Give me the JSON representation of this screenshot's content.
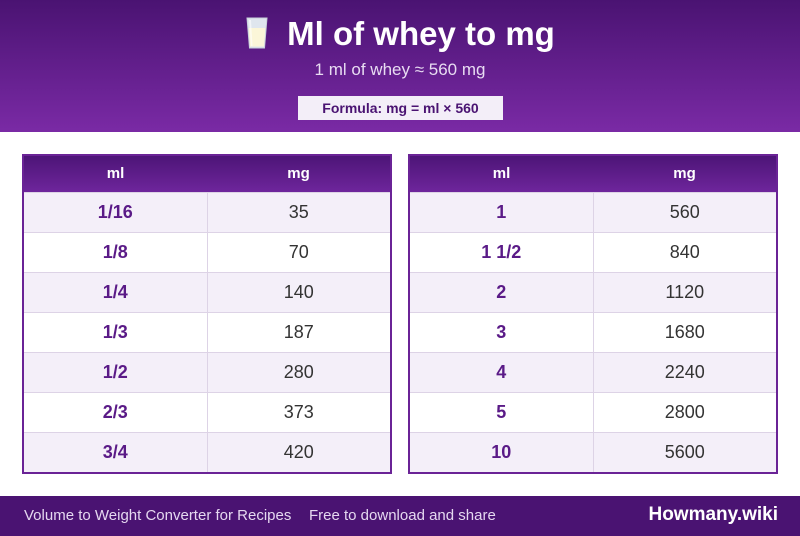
{
  "header": {
    "title": "Ml of whey to mg",
    "subtitle": "1 ml of whey ≈ 560 mg",
    "formula": "Formula: mg = ml × 560"
  },
  "tables": [
    {
      "col_ml": "ml",
      "col_mg": "mg",
      "rows": [
        {
          "ml": "1/16",
          "mg": "35"
        },
        {
          "ml": "1/8",
          "mg": "70"
        },
        {
          "ml": "1/4",
          "mg": "140"
        },
        {
          "ml": "1/3",
          "mg": "187"
        },
        {
          "ml": "1/2",
          "mg": "280"
        },
        {
          "ml": "2/3",
          "mg": "373"
        },
        {
          "ml": "3/4",
          "mg": "420"
        }
      ]
    },
    {
      "col_ml": "ml",
      "col_mg": "mg",
      "rows": [
        {
          "ml": "1",
          "mg": "560"
        },
        {
          "ml": "1 1/2",
          "mg": "840"
        },
        {
          "ml": "2",
          "mg": "1120"
        },
        {
          "ml": "3",
          "mg": "1680"
        },
        {
          "ml": "4",
          "mg": "2240"
        },
        {
          "ml": "5",
          "mg": "2800"
        },
        {
          "ml": "10",
          "mg": "5600"
        }
      ]
    }
  ],
  "footer": {
    "left": "Volume to Weight Converter for Recipes",
    "middle": "Free to download and share",
    "brand": "Howmany.wiki"
  },
  "icons": {
    "title_icon": "milk-glass-icon"
  }
}
